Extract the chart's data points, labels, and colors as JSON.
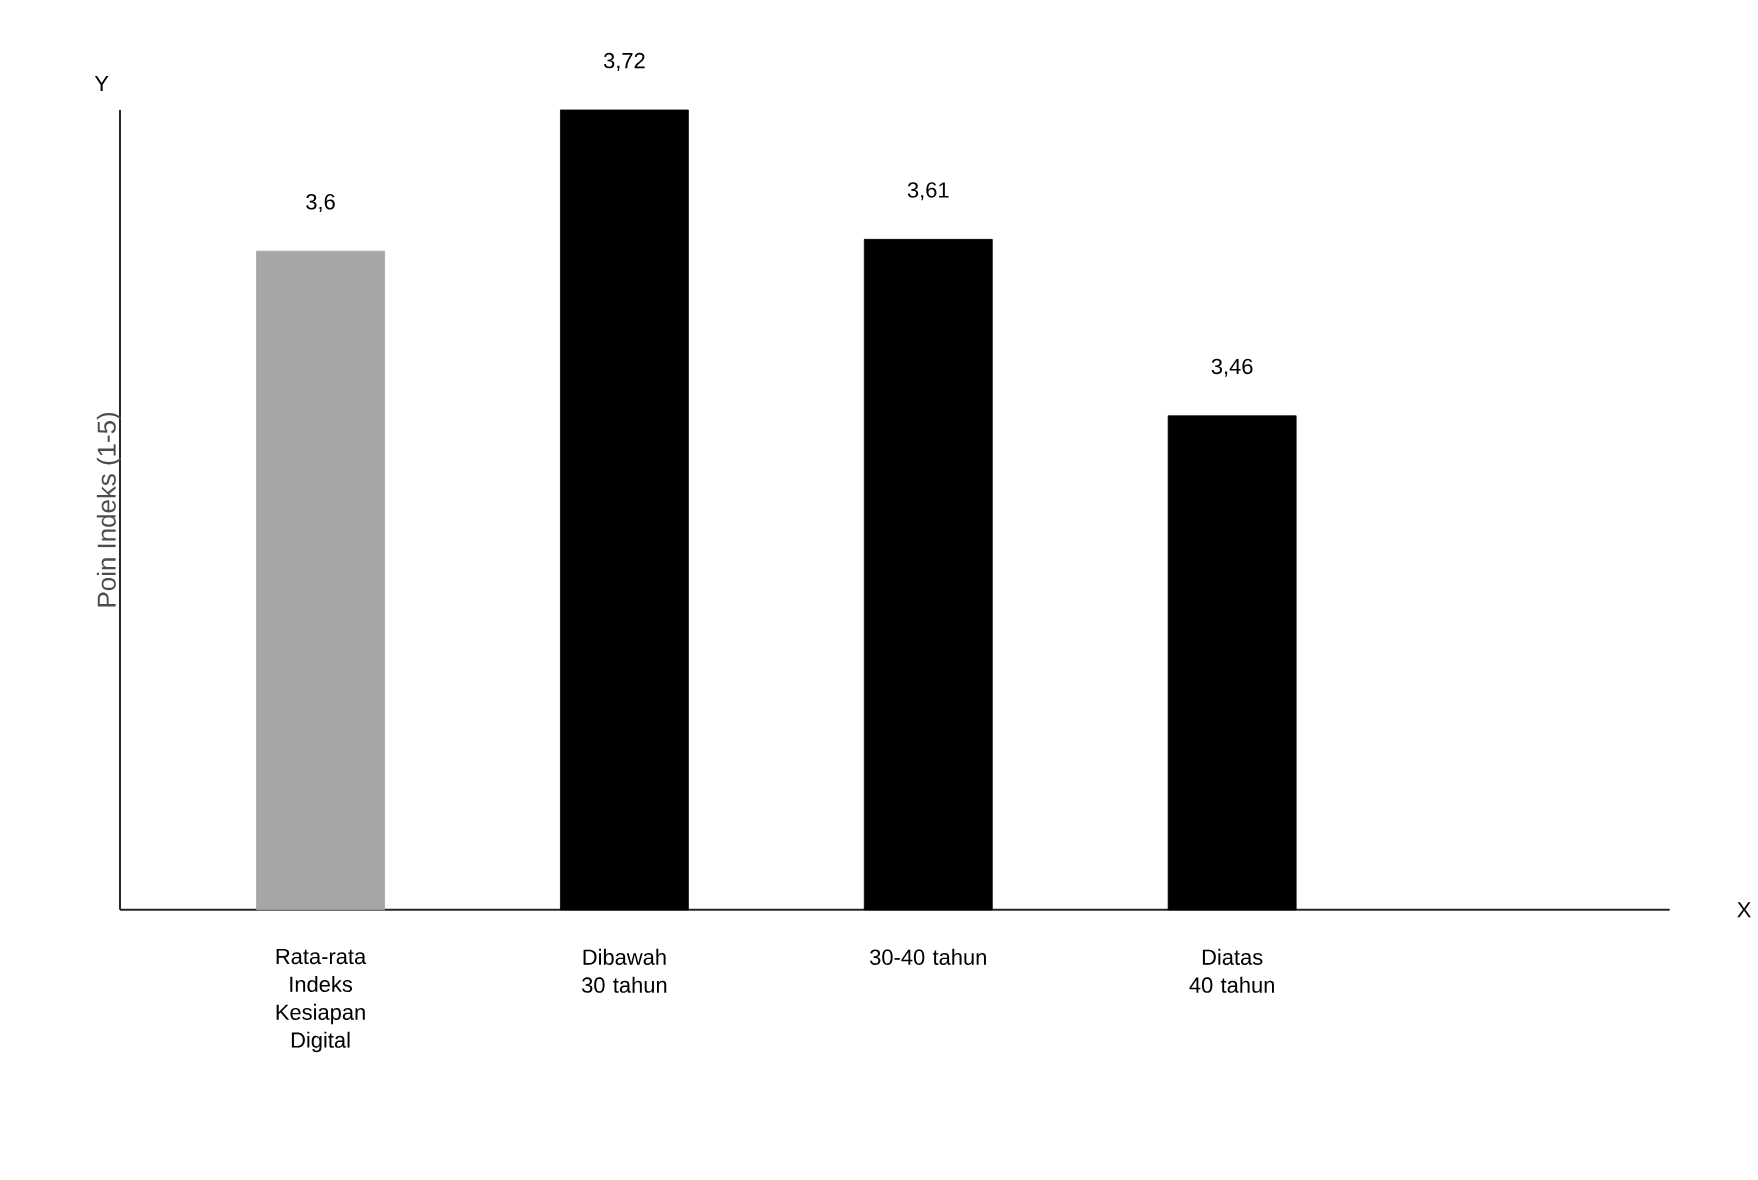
{
  "chart_data": {
    "type": "bar",
    "categories": [
      "Rata-rata Indeks Kesiapan Digital",
      "Dibawah 30 tahun",
      "30-40 tahun",
      "Diatas 40 tahun"
    ],
    "values": [
      3.6,
      3.72,
      3.61,
      3.46
    ],
    "value_labels": [
      "3,6",
      "3,72",
      "3,61",
      "3,46"
    ],
    "colors": [
      "#a6a6a6",
      "#000000",
      "#000000",
      "#000000"
    ],
    "ylim": [
      3.04,
      3.72
    ],
    "ylabel": "Poin Indeks (1-5)",
    "annotations": [
      "Y",
      "X"
    ]
  }
}
